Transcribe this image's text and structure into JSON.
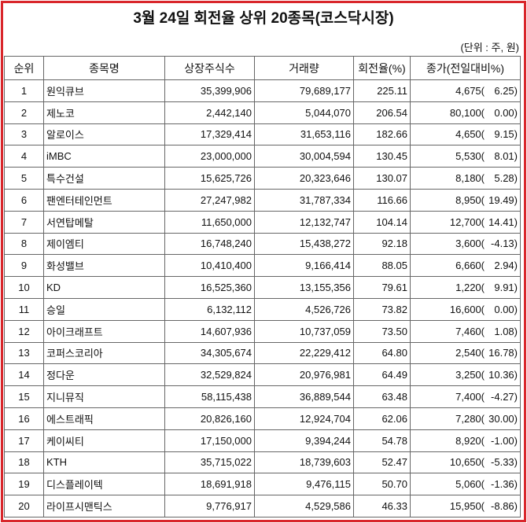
{
  "title": "3월 24일 회전율 상위 20종목(코스닥시장)",
  "unit": "(단위 : 주, 원)",
  "headers": [
    "순위",
    "종목명",
    "상장주식수",
    "거래량",
    "회전율(%)",
    "종가(전일대비%)"
  ],
  "rows": [
    {
      "rank": "1",
      "name": "원익큐브",
      "shares": "35,399,906",
      "volume": "79,689,177",
      "turnover": "225.11",
      "price": "4,675(",
      "change": "6.25)"
    },
    {
      "rank": "2",
      "name": "제노코",
      "shares": "2,442,140",
      "volume": "5,044,070",
      "turnover": "206.54",
      "price": "80,100(",
      "change": "0.00)"
    },
    {
      "rank": "3",
      "name": "알로이스",
      "shares": "17,329,414",
      "volume": "31,653,116",
      "turnover": "182.66",
      "price": "4,650(",
      "change": "9.15)"
    },
    {
      "rank": "4",
      "name": "iMBC",
      "shares": "23,000,000",
      "volume": "30,004,594",
      "turnover": "130.45",
      "price": "5,530(",
      "change": "8.01)"
    },
    {
      "rank": "5",
      "name": "특수건설",
      "shares": "15,625,726",
      "volume": "20,323,646",
      "turnover": "130.07",
      "price": "8,180(",
      "change": "5.28)"
    },
    {
      "rank": "6",
      "name": "팬엔터테인먼트",
      "shares": "27,247,982",
      "volume": "31,787,334",
      "turnover": "116.66",
      "price": "8,950(",
      "change": "19.49)"
    },
    {
      "rank": "7",
      "name": "서연탑메탈",
      "shares": "11,650,000",
      "volume": "12,132,747",
      "turnover": "104.14",
      "price": "12,700(",
      "change": "14.41)"
    },
    {
      "rank": "8",
      "name": "제이엠티",
      "shares": "16,748,240",
      "volume": "15,438,272",
      "turnover": "92.18",
      "price": "3,600(",
      "change": "-4.13)"
    },
    {
      "rank": "9",
      "name": "화성밸브",
      "shares": "10,410,400",
      "volume": "9,166,414",
      "turnover": "88.05",
      "price": "6,660(",
      "change": "2.94)"
    },
    {
      "rank": "10",
      "name": "KD",
      "shares": "16,525,360",
      "volume": "13,155,356",
      "turnover": "79.61",
      "price": "1,220(",
      "change": "9.91)"
    },
    {
      "rank": "11",
      "name": "승일",
      "shares": "6,132,112",
      "volume": "4,526,726",
      "turnover": "73.82",
      "price": "16,600(",
      "change": "0.00)"
    },
    {
      "rank": "12",
      "name": "아이크래프트",
      "shares": "14,607,936",
      "volume": "10,737,059",
      "turnover": "73.50",
      "price": "7,460(",
      "change": "1.08)"
    },
    {
      "rank": "13",
      "name": "코퍼스코리아",
      "shares": "34,305,674",
      "volume": "22,229,412",
      "turnover": "64.80",
      "price": "2,540(",
      "change": "16.78)"
    },
    {
      "rank": "14",
      "name": "정다운",
      "shares": "32,529,824",
      "volume": "20,976,981",
      "turnover": "64.49",
      "price": "3,250(",
      "change": "10.36)"
    },
    {
      "rank": "15",
      "name": "지니뮤직",
      "shares": "58,115,438",
      "volume": "36,889,544",
      "turnover": "63.48",
      "price": "7,400(",
      "change": "-4.27)"
    },
    {
      "rank": "16",
      "name": "에스트래픽",
      "shares": "20,826,160",
      "volume": "12,924,704",
      "turnover": "62.06",
      "price": "7,280(",
      "change": "30.00)"
    },
    {
      "rank": "17",
      "name": "케이씨티",
      "shares": "17,150,000",
      "volume": "9,394,244",
      "turnover": "54.78",
      "price": "8,920(",
      "change": "-1.00)"
    },
    {
      "rank": "18",
      "name": "KTH",
      "shares": "35,715,022",
      "volume": "18,739,603",
      "turnover": "52.47",
      "price": "10,650(",
      "change": "-5.33)"
    },
    {
      "rank": "19",
      "name": "디스플레이텍",
      "shares": "18,691,918",
      "volume": "9,476,115",
      "turnover": "50.70",
      "price": "5,060(",
      "change": "-1.36)"
    },
    {
      "rank": "20",
      "name": "라이프시맨틱스",
      "shares": "9,776,917",
      "volume": "4,529,586",
      "turnover": "46.33",
      "price": "15,950(",
      "change": "-8.86)"
    }
  ]
}
